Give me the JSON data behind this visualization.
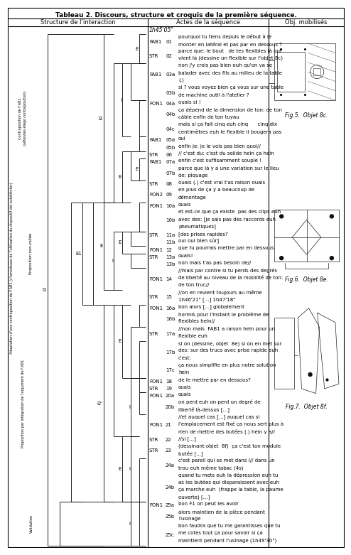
{
  "title": "Tableau 2. Discours, structure et croquis de la première séquence.",
  "col1_header": "Structure de l’interaction",
  "col2_header": "Actes de la séquence",
  "col3_header": "Obj. mobilisés",
  "fig5_label": "Fig.5.  Objet 8c.",
  "fig6_label": "Fig.6.  Objet 8e.",
  "fig7_label": "Fig.7.  Objet 8f.",
  "rows": [
    [
      "time",
      "1h45'05\""
    ],
    [
      "FAB1",
      "01",
      "pourquoi tu tiens depuis le début à le",
      "monter en latéral et pas par en dessous ?"
    ],
    [
      "STR",
      "02",
      "parce que: le bout   de tes flexibles là qui",
      "vient là (dessine un flexible sur l'objet 8c)"
    ],
    [
      "FAB1",
      "03a",
      "non j'y crois pas bien euh qu'on va se",
      "balader avec des fils au milieu de la table",
      "(.)"
    ],
    [
      "",
      "03b",
      "si ? vous voyez bien ça vous sur une table",
      "de machine outil à l'atelier ?"
    ],
    [
      "FON1",
      "04a",
      "ouais si !"
    ],
    [
      "",
      "04b",
      "ça dépend de la dimension de ton: de ton",
      "câble enfin de ton tuyau"
    ],
    [
      "",
      "04c",
      "mais si ça fait cinq euh cinq      cinq dix",
      "centimètres euh le flexible il bougera pas"
    ],
    [
      "FAB1",
      "05a",
      "oui"
    ],
    [
      "",
      "05b",
      "enfin je: je le vois pas bien quoi//"
    ],
    [
      "STR",
      "06",
      "// c'est du: c'est du solide hein ça hein"
    ],
    [
      "FAB1",
      "07a",
      "enfin c'est suffisamment souple !"
    ],
    [
      "",
      "07b",
      "parce que là y a une variation sur le lieu",
      "de: piquage"
    ],
    [
      "STR",
      "08",
      "ouais (.) c'est vrai t'as raison ouais"
    ],
    [
      "FON2",
      "09",
      "en plus de ça y a beaucoup de",
      "démontage"
    ],
    [
      "FON1",
      "10a",
      "ouais"
    ],
    [
      "",
      "10b",
      "et est-ce que ça existe  pas des clips euh",
      "avec des: [je sais pas des raccords euh",
      "pneumatiques]"
    ],
    [
      "STR",
      "11a",
      "[des prises rapides?"
    ],
    [
      "",
      "11b",
      "oui oui bien sûr]"
    ],
    [
      "FON1",
      "12",
      "que tu pourrais mettre par en dessous"
    ],
    [
      "STR",
      "13a",
      "ouais!"
    ],
    [
      "",
      "13b",
      "non mais t'as pas besoin de//"
    ],
    [
      "FON1",
      "14",
      "//mais par contre si tu perds des degrés",
      "de liberté au niveau de la mobilité de ton:",
      "de ton truc//"
    ],
    [
      "STR",
      "15",
      "//on en revient toujours au même",
      "1h46'21\" [...] 1h47'18\""
    ],
    [
      "FON1",
      "16a",
      "bon alors [...] globalement"
    ],
    [
      "",
      "16b",
      "hormis pour l'instant le problème de",
      "flexibles hein//"
    ],
    [
      "STR",
      "17a",
      "//non mais  FAB1 a raison hein pour un",
      "flexible euh"
    ],
    [
      "",
      "17b",
      "si on (dessine, objet  8e) si on en met sur",
      "des: sur des trucs avec prise rapide euh",
      "c'est:"
    ],
    [
      "",
      "17c",
      "ça nous simplifie en plus notre solution",
      "hein"
    ],
    [
      "FON1",
      "18",
      "de le mettre par en dessous?"
    ],
    [
      "STR",
      "19",
      "ouais"
    ],
    [
      "FON1",
      "20a",
      "ouais"
    ],
    [
      "",
      "20b",
      "on perd euh on perd un degré de",
      "liberté là-dessus [...]"
    ],
    [
      "FON1",
      "21",
      "//et auquel cas [...] auquel cas si",
      "l'emplacement est fixé ça nous sert plus à",
      "rien de mettre des butées (.) hein y a//"
    ],
    [
      "STR",
      "22",
      "//si [...]"
    ],
    [
      "STR",
      "23",
      "(dessinant objet  8f)  ça c'est ton module",
      "butée [...]"
    ],
    [
      "",
      "24a",
      "c'est pareil qui se met dans I// dans un",
      "trou euh même tabac (4s)"
    ],
    [
      "",
      "24b",
      "quand tu mets euh la dépression euh tu",
      "as les butées qui disparaissent avec euh",
      "ça marche euh  (frappe la table, la paume",
      "ouverte) [...]"
    ],
    [
      "FON1",
      "25a",
      "bon F1 on peut les avoir"
    ],
    [
      "",
      "25b",
      "alors maintien de la pièce pendant",
      "l'usinage"
    ],
    [
      "",
      "25c",
      "bon faudra que tu me garantisses que tu",
      "me cotes tout ça pour savoir si ça",
      "maintient pendant l'usinage (1h49'30\")"
    ]
  ]
}
